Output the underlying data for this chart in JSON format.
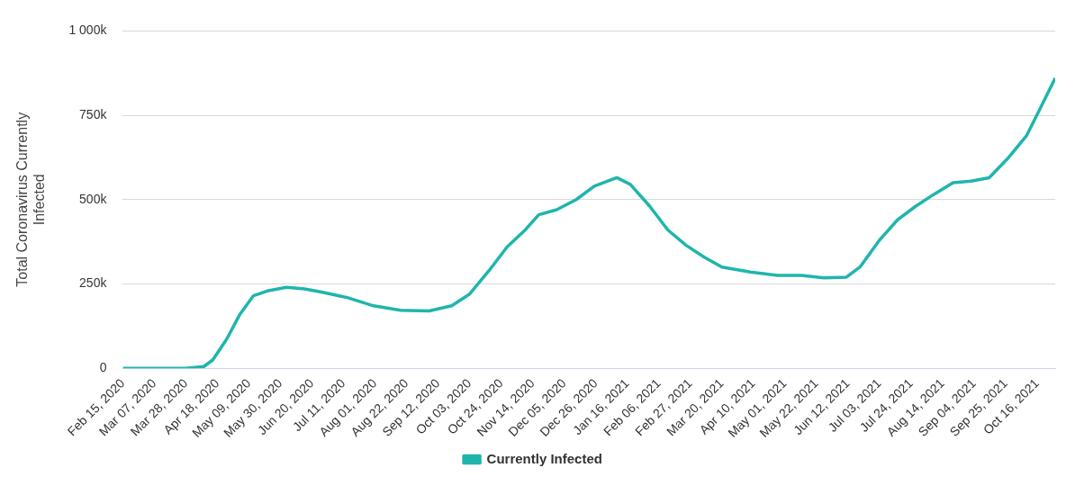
{
  "chart_data": {
    "type": "line",
    "ylabel": "Total Coronavirus Currently Infected",
    "x": [
      "2020-02-15",
      "2020-03-28",
      "2020-04-09",
      "2020-04-15",
      "2020-04-24",
      "2020-05-03",
      "2020-05-12",
      "2020-05-22",
      "2020-06-03",
      "2020-06-15",
      "2020-06-27",
      "2020-07-13",
      "2020-07-31",
      "2020-08-18",
      "2020-09-06",
      "2020-09-21",
      "2020-10-03",
      "2020-10-16",
      "2020-10-28",
      "2020-11-09",
      "2020-11-18",
      "2020-11-30",
      "2020-12-13",
      "2020-12-25",
      "2021-01-09",
      "2021-01-18",
      "2021-01-31",
      "2021-02-12",
      "2021-02-24",
      "2021-03-08",
      "2021-03-20",
      "2021-04-08",
      "2021-04-26",
      "2021-05-12",
      "2021-05-27",
      "2021-06-11",
      "2021-06-20",
      "2021-07-03",
      "2021-07-15",
      "2021-07-27",
      "2021-08-08",
      "2021-08-21",
      "2021-09-02",
      "2021-09-14",
      "2021-09-26",
      "2021-10-09",
      "2021-10-18",
      "2021-10-28"
    ],
    "series": [
      {
        "name": "Currently Infected",
        "color": "#1fb5ad",
        "values": [
          0,
          0,
          5000,
          25000,
          85000,
          160000,
          215000,
          230000,
          240000,
          235000,
          225000,
          210000,
          185000,
          172000,
          170000,
          185000,
          220000,
          290000,
          360000,
          410000,
          455000,
          470000,
          500000,
          540000,
          565000,
          545000,
          480000,
          410000,
          365000,
          330000,
          300000,
          285000,
          275000,
          275000,
          268000,
          270000,
          300000,
          380000,
          440000,
          480000,
          515000,
          550000,
          555000,
          565000,
          620000,
          690000,
          770000,
          860000
        ]
      }
    ],
    "xlim": [
      "2020-02-15",
      "2021-10-28"
    ],
    "xticks": [
      {
        "value": "2020-02-15",
        "label": "Feb 15, 2020"
      },
      {
        "value": "2020-03-07",
        "label": "Mar 07, 2020"
      },
      {
        "value": "2020-03-28",
        "label": "Mar 28, 2020"
      },
      {
        "value": "2020-04-18",
        "label": "Apr 18, 2020"
      },
      {
        "value": "2020-05-09",
        "label": "May 09, 2020"
      },
      {
        "value": "2020-05-30",
        "label": "May 30, 2020"
      },
      {
        "value": "2020-06-20",
        "label": "Jun 20, 2020"
      },
      {
        "value": "2020-07-11",
        "label": "Jul 11, 2020"
      },
      {
        "value": "2020-08-01",
        "label": "Aug 01, 2020"
      },
      {
        "value": "2020-08-22",
        "label": "Aug 22, 2020"
      },
      {
        "value": "2020-09-12",
        "label": "Sep 12, 2020"
      },
      {
        "value": "2020-10-03",
        "label": "Oct 03, 2020"
      },
      {
        "value": "2020-10-24",
        "label": "Oct 24, 2020"
      },
      {
        "value": "2020-11-14",
        "label": "Nov 14, 2020"
      },
      {
        "value": "2020-12-05",
        "label": "Dec 05, 2020"
      },
      {
        "value": "2020-12-26",
        "label": "Dec 26, 2020"
      },
      {
        "value": "2021-01-16",
        "label": "Jan 16, 2021"
      },
      {
        "value": "2021-02-06",
        "label": "Feb 06, 2021"
      },
      {
        "value": "2021-02-27",
        "label": "Feb 27, 2021"
      },
      {
        "value": "2021-03-20",
        "label": "Mar 20, 2021"
      },
      {
        "value": "2021-04-10",
        "label": "Apr 10, 2021"
      },
      {
        "value": "2021-05-01",
        "label": "May 01, 2021"
      },
      {
        "value": "2021-05-22",
        "label": "May 22, 2021"
      },
      {
        "value": "2021-06-12",
        "label": "Jun 12, 2021"
      },
      {
        "value": "2021-07-03",
        "label": "Jul 03, 2021"
      },
      {
        "value": "2021-07-24",
        "label": "Jul 24, 2021"
      },
      {
        "value": "2021-08-14",
        "label": "Aug 14, 2021"
      },
      {
        "value": "2021-09-04",
        "label": "Sep 04, 2021"
      },
      {
        "value": "2021-09-25",
        "label": "Sep 25, 2021"
      },
      {
        "value": "2021-10-16",
        "label": "Oct 16, 2021"
      }
    ],
    "ylim": [
      0,
      1000000
    ],
    "yticks": [
      {
        "value": 0,
        "label": "0"
      },
      {
        "value": 250000,
        "label": "250k"
      },
      {
        "value": 500000,
        "label": "500k"
      },
      {
        "value": 750000,
        "label": "750k"
      },
      {
        "value": 1000000,
        "label": "1 000k"
      }
    ],
    "grid": "y",
    "legend": "bottom",
    "marker": "none",
    "line_style": "solid"
  }
}
